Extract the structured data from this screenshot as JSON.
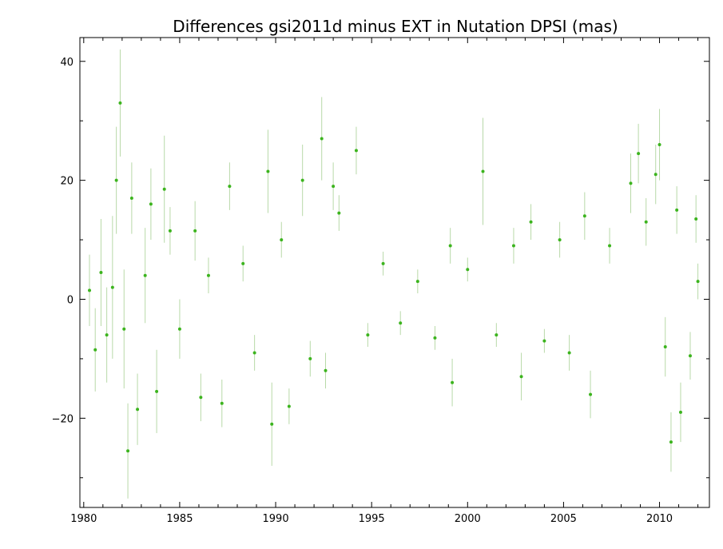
{
  "chart_data": {
    "type": "scatter",
    "title": "Differences gsi2011d minus EXT in Nutation DPSI (mas)",
    "xlabel": "",
    "ylabel": "",
    "xlim": [
      1979.8,
      2012.6
    ],
    "ylim": [
      -35,
      44
    ],
    "x_ticks": [
      1980,
      1985,
      1990,
      1995,
      2000,
      2005,
      2010
    ],
    "x_tick_labels": [
      "1980",
      "1985",
      "1990",
      "1995",
      "2000",
      "2005",
      "2010"
    ],
    "y_ticks": [
      -20,
      0,
      20,
      40
    ],
    "y_tick_labels": [
      "−20",
      "0",
      "20",
      "40"
    ],
    "grid": false,
    "colors": {
      "point": "#3cb41e",
      "error_bar": "#b8d9a8"
    },
    "series": [
      {
        "points": [
          {
            "x": 1980.3,
            "y": 1.5,
            "err": 6
          },
          {
            "x": 1980.6,
            "y": -8.5,
            "err": 7
          },
          {
            "x": 1980.9,
            "y": 4.5,
            "err": 9
          },
          {
            "x": 1981.2,
            "y": -6.0,
            "err": 8
          },
          {
            "x": 1981.5,
            "y": 2.0,
            "err": 12
          },
          {
            "x": 1981.7,
            "y": 20.0,
            "err": 9
          },
          {
            "x": 1981.9,
            "y": 33.0,
            "err": 9
          },
          {
            "x": 1982.1,
            "y": -5.0,
            "err": 10
          },
          {
            "x": 1982.3,
            "y": -25.5,
            "err": 8
          },
          {
            "x": 1982.5,
            "y": 17.0,
            "err": 6
          },
          {
            "x": 1982.8,
            "y": -18.5,
            "err": 6
          },
          {
            "x": 1983.2,
            "y": 4.0,
            "err": 8
          },
          {
            "x": 1983.5,
            "y": 16.0,
            "err": 6
          },
          {
            "x": 1983.8,
            "y": -15.5,
            "err": 7
          },
          {
            "x": 1984.2,
            "y": 18.5,
            "err": 9
          },
          {
            "x": 1984.5,
            "y": 11.5,
            "err": 4
          },
          {
            "x": 1985.0,
            "y": -5.0,
            "err": 5
          },
          {
            "x": 1985.8,
            "y": 11.5,
            "err": 5
          },
          {
            "x": 1986.1,
            "y": -16.5,
            "err": 4
          },
          {
            "x": 1986.5,
            "y": 4.0,
            "err": 3
          },
          {
            "x": 1987.2,
            "y": -17.5,
            "err": 4
          },
          {
            "x": 1987.6,
            "y": 19.0,
            "err": 4
          },
          {
            "x": 1988.3,
            "y": 6.0,
            "err": 3
          },
          {
            "x": 1988.9,
            "y": -9.0,
            "err": 3
          },
          {
            "x": 1989.6,
            "y": 21.5,
            "err": 7
          },
          {
            "x": 1989.8,
            "y": -21.0,
            "err": 7
          },
          {
            "x": 1990.3,
            "y": 10.0,
            "err": 3
          },
          {
            "x": 1990.7,
            "y": -18.0,
            "err": 3
          },
          {
            "x": 1991.4,
            "y": 20.0,
            "err": 6
          },
          {
            "x": 1991.8,
            "y": -10.0,
            "err": 3
          },
          {
            "x": 1992.4,
            "y": 27.0,
            "err": 7
          },
          {
            "x": 1992.6,
            "y": -12.0,
            "err": 3
          },
          {
            "x": 1993.0,
            "y": 19.0,
            "err": 4
          },
          {
            "x": 1993.3,
            "y": 14.5,
            "err": 3
          },
          {
            "x": 1994.2,
            "y": 25.0,
            "err": 4
          },
          {
            "x": 1994.8,
            "y": -6.0,
            "err": 2
          },
          {
            "x": 1995.6,
            "y": 6.0,
            "err": 2
          },
          {
            "x": 1996.5,
            "y": -4.0,
            "err": 2
          },
          {
            "x": 1997.4,
            "y": 3.0,
            "err": 2
          },
          {
            "x": 1998.3,
            "y": -6.5,
            "err": 2
          },
          {
            "x": 1999.1,
            "y": 9.0,
            "err": 3
          },
          {
            "x": 1999.2,
            "y": -14.0,
            "err": 4
          },
          {
            "x": 2000.0,
            "y": 5.0,
            "err": 2
          },
          {
            "x": 2000.8,
            "y": 21.5,
            "err": 9
          },
          {
            "x": 2001.5,
            "y": -6.0,
            "err": 2
          },
          {
            "x": 2002.4,
            "y": 9.0,
            "err": 3
          },
          {
            "x": 2002.8,
            "y": -13.0,
            "err": 4
          },
          {
            "x": 2003.3,
            "y": 13.0,
            "err": 3
          },
          {
            "x": 2004.0,
            "y": -7.0,
            "err": 2
          },
          {
            "x": 2004.8,
            "y": 10.0,
            "err": 3
          },
          {
            "x": 2005.3,
            "y": -9.0,
            "err": 3
          },
          {
            "x": 2006.1,
            "y": 14.0,
            "err": 4
          },
          {
            "x": 2006.4,
            "y": -16.0,
            "err": 4
          },
          {
            "x": 2007.4,
            "y": 9.0,
            "err": 3
          },
          {
            "x": 2008.5,
            "y": 19.5,
            "err": 5
          },
          {
            "x": 2008.9,
            "y": 24.5,
            "err": 5
          },
          {
            "x": 2009.3,
            "y": 13.0,
            "err": 4
          },
          {
            "x": 2009.8,
            "y": 21.0,
            "err": 5
          },
          {
            "x": 2010.0,
            "y": 26.0,
            "err": 6
          },
          {
            "x": 2010.3,
            "y": -8.0,
            "err": 5
          },
          {
            "x": 2010.6,
            "y": -24.0,
            "err": 5
          },
          {
            "x": 2010.9,
            "y": 15.0,
            "err": 4
          },
          {
            "x": 2011.1,
            "y": -19.0,
            "err": 5
          },
          {
            "x": 2011.6,
            "y": -9.5,
            "err": 4
          },
          {
            "x": 2011.9,
            "y": 13.5,
            "err": 4
          },
          {
            "x": 2012.0,
            "y": 3.0,
            "err": 3
          }
        ]
      }
    ]
  }
}
